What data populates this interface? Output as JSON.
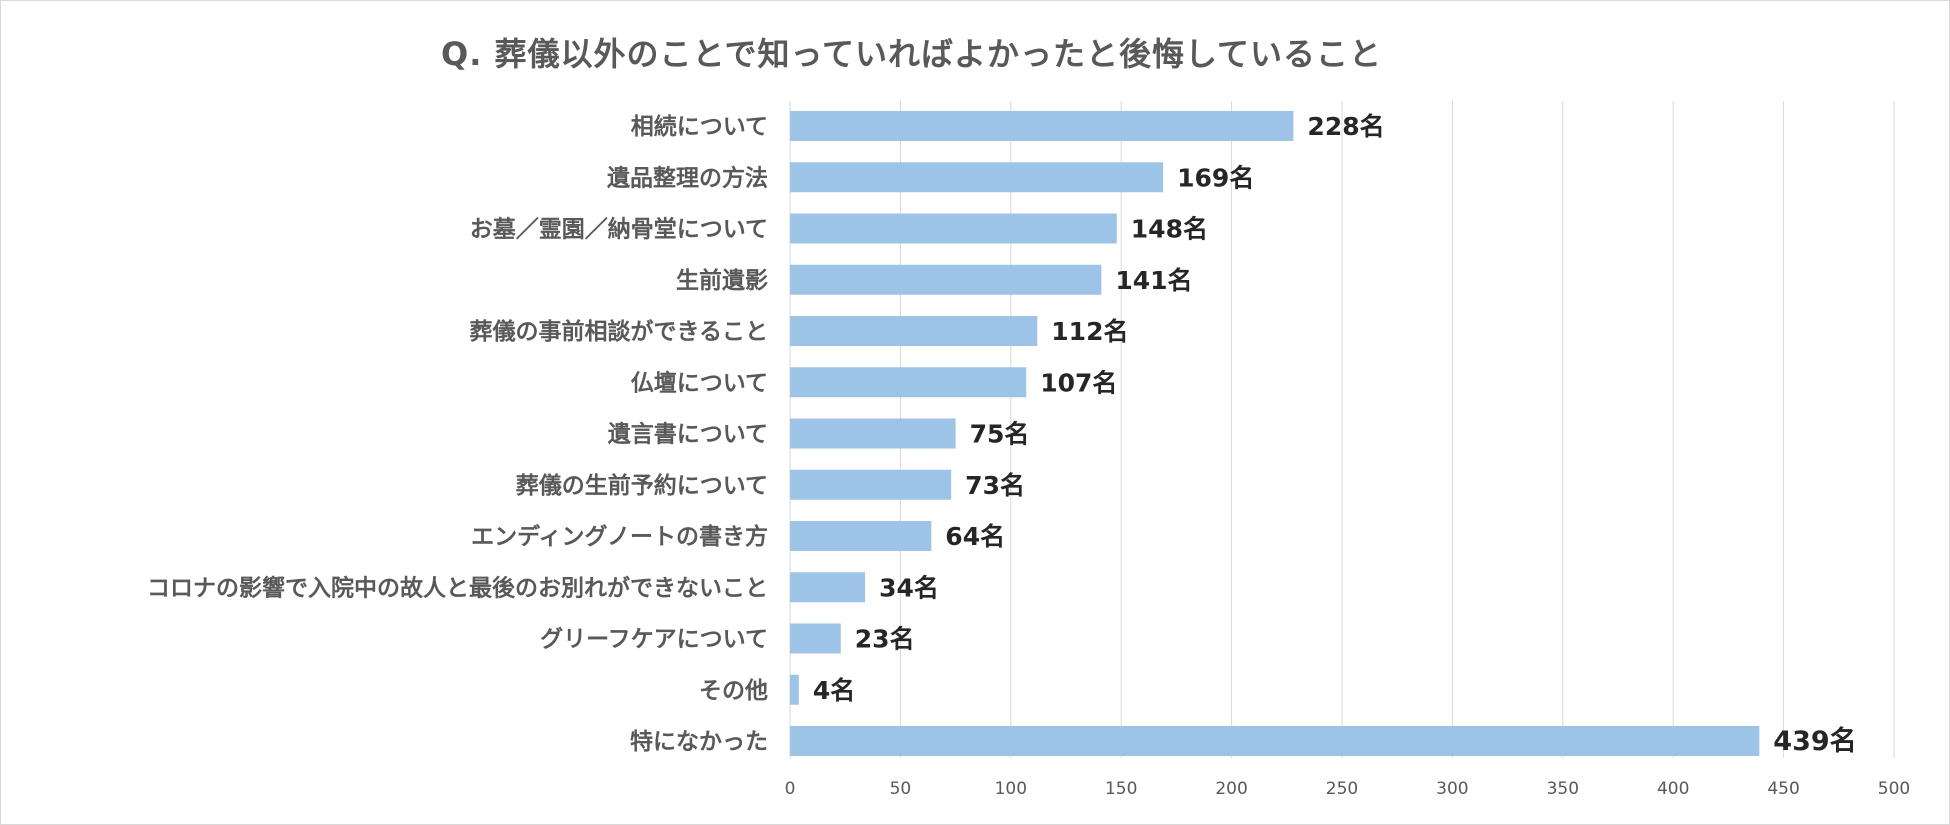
{
  "chart_data": {
    "type": "bar",
    "orientation": "horizontal",
    "title": "Q. 葬儀以外のことで知っていればよかったと後悔していること",
    "categories": [
      "相続について",
      "遺品整理の方法",
      "お墓／霊園／納骨堂について",
      "生前遺影",
      "葬儀の事前相談ができること",
      "仏壇について",
      "遺言書について",
      "葬儀の生前予約について",
      "エンディングノートの書き方",
      "コロナの影響で入院中の故人と最後のお別れができないこと",
      "グリーフケアについて",
      "その他",
      "特になかった"
    ],
    "values": [
      228,
      169,
      148,
      141,
      112,
      107,
      75,
      73,
      64,
      34,
      23,
      4,
      439
    ],
    "value_labels": [
      "228名",
      "169名",
      "148名",
      "141名",
      "112名",
      "107名",
      "75名",
      "73名",
      "64名",
      "34名",
      "23名",
      "4名",
      "439名"
    ],
    "xlim": [
      0,
      500
    ],
    "xticks": [
      "0",
      "50",
      "100",
      "150",
      "200",
      "250",
      "300",
      "350",
      "400",
      "450",
      "500"
    ],
    "grid": true,
    "legend": "none",
    "bar_color": "#9dc3e6",
    "grid_color": "#d9d9d9",
    "label_color": "#595959",
    "value_label_color": "#262626"
  }
}
